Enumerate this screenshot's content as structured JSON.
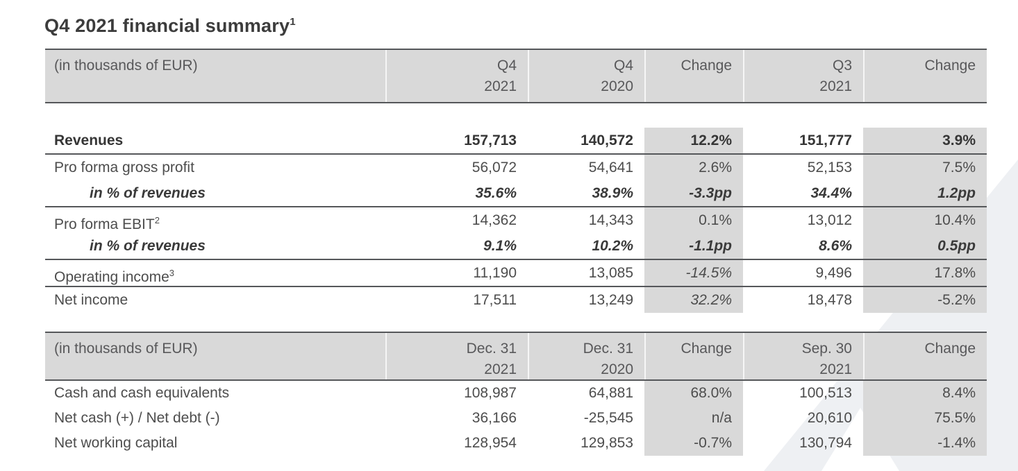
{
  "title": {
    "text": "Q4 2021 financial summary",
    "superscript": "1"
  },
  "tables": [
    {
      "id": "income-table",
      "name": "income-statement-table",
      "unit_label": "(in thousands of EUR)",
      "column_headers": [
        {
          "line1": "Q4",
          "line2": "2021"
        },
        {
          "line1": "Q4",
          "line2": "2020"
        },
        {
          "line1": "Change",
          "line2": ""
        },
        {
          "line1": "Q3",
          "line2": "2021"
        },
        {
          "line1": "Change",
          "line2": ""
        }
      ],
      "header_gap": true,
      "rows": [
        {
          "label": "Revenues",
          "bold": true,
          "values": [
            "157,713",
            "140,572",
            "12.2%",
            "151,777",
            "3.9%"
          ],
          "divider_after": true
        },
        {
          "label": "Pro forma gross profit",
          "values": [
            "56,072",
            "54,641",
            "2.6%",
            "52,153",
            "7.5%"
          ]
        },
        {
          "label": "in % of revenues",
          "bold_italic": true,
          "indent": true,
          "values": [
            "35.6%",
            "38.9%",
            "-3.3pp",
            "34.4%",
            "1.2pp"
          ],
          "divider_after": true
        },
        {
          "label": "Pro forma EBIT",
          "label_sup": "2",
          "values": [
            "14,362",
            "14,343",
            "0.1%",
            "13,012",
            "10.4%"
          ]
        },
        {
          "label": "in % of revenues",
          "bold_italic": true,
          "indent": true,
          "values": [
            "9.1%",
            "10.2%",
            "-1.1pp",
            "8.6%",
            "0.5pp"
          ],
          "divider_after": true
        },
        {
          "label": "Operating income",
          "label_sup": "3",
          "values": [
            "11,190",
            "13,085",
            "-14.5%",
            "9,496",
            "17.8%"
          ],
          "italic_cells": [
            2
          ],
          "divider_after": true
        },
        {
          "label": "Net income",
          "values": [
            "17,511",
            "13,249",
            "32.2%",
            "18,478",
            "-5.2%"
          ],
          "italic_cells": [
            2
          ]
        }
      ]
    },
    {
      "id": "balance-table",
      "name": "balance-items-table",
      "unit_label": "(in thousands of EUR)",
      "column_headers": [
        {
          "line1": "Dec. 31",
          "line2": "2021"
        },
        {
          "line1": "Dec. 31",
          "line2": "2020"
        },
        {
          "line1": "Change",
          "line2": ""
        },
        {
          "line1": "Sep. 30",
          "line2": "2021"
        },
        {
          "line1": "Change",
          "line2": ""
        }
      ],
      "header_gap": false,
      "rows": [
        {
          "label": "Cash and cash equivalents",
          "values": [
            "108,987",
            "64,881",
            "68.0%",
            "100,513",
            "8.4%"
          ]
        },
        {
          "label": "Net cash (+) / Net debt (-)",
          "values": [
            "36,166",
            "-25,545",
            "n/a",
            "20,610",
            "75.5%"
          ]
        },
        {
          "label": "Net working capital",
          "values": [
            "128,954",
            "129,853",
            "-0.7%",
            "130,794",
            "-1.4%"
          ]
        }
      ]
    }
  ],
  "colors": {
    "band_grey": "#d9d9d9",
    "border_dark": "#55575a",
    "text": "#4d4d4d",
    "text_bold": "#363636",
    "watermark": "#eef0f3"
  }
}
